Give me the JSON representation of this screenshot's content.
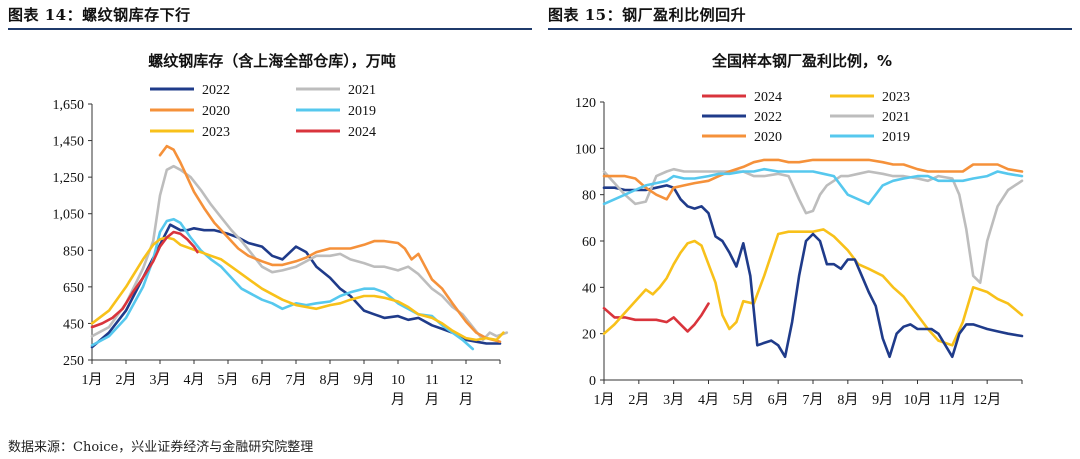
{
  "header": {
    "left_title": "图表 14：螺纹钢库存下行",
    "right_title": "图表 15：钢厂盈利比例回升"
  },
  "source": "数据来源：Choice，兴业证券经济与金融研究院整理",
  "colors": {
    "rule": "#1f3a6b",
    "navy": "#1f3b8a",
    "gray": "#bdbdbd",
    "orange": "#f5913a",
    "sky": "#56c8ee",
    "gold": "#f8c11a",
    "red": "#d9343c"
  },
  "chart_data": [
    {
      "type": "line",
      "title": "螺纹钢库存（含上海全部仓库），万吨",
      "x_range": [
        0,
        12
      ],
      "x_tick_labels": [
        "1月",
        "2月",
        "3月",
        "4月",
        "5月",
        "6月",
        "7月",
        "8月",
        "9月",
        "10\n月",
        "11\n月",
        "12\n月"
      ],
      "ylim": [
        250,
        1650
      ],
      "y_ticks": [
        250,
        450,
        650,
        850,
        1050,
        1250,
        1450,
        1650
      ],
      "y_tick_labels": [
        "250",
        "450",
        "650",
        "850",
        "1,050",
        "1,250",
        "1,450",
        "1,650"
      ],
      "legend": [
        "2022",
        "2021",
        "2020",
        "2019",
        "2023",
        "2024"
      ],
      "series": [
        {
          "name": "2022",
          "color": "#1f3b8a",
          "x": [
            0,
            0.5,
            1,
            1.5,
            2,
            2.3,
            2.6,
            2.8,
            3,
            3.3,
            3.6,
            4,
            4.3,
            4.6,
            5,
            5.3,
            5.6,
            6,
            6.3,
            6.6,
            7,
            7.3,
            7.6,
            8,
            8.3,
            8.6,
            9,
            9.3,
            9.6,
            10,
            10.3,
            10.6,
            11,
            11.3,
            11.6,
            12
          ],
          "y": [
            320,
            400,
            520,
            700,
            880,
            990,
            960,
            960,
            970,
            960,
            960,
            940,
            920,
            890,
            870,
            820,
            800,
            870,
            840,
            760,
            700,
            640,
            600,
            520,
            500,
            480,
            490,
            470,
            480,
            440,
            420,
            400,
            360,
            350,
            340,
            340
          ]
        },
        {
          "name": "2021",
          "color": "#bdbdbd",
          "x": [
            0,
            0.5,
            1,
            1.5,
            1.8,
            2,
            2.2,
            2.4,
            2.6,
            2.9,
            3.2,
            3.5,
            3.8,
            4.1,
            4.4,
            4.7,
            5,
            5.3,
            5.6,
            6,
            6.3,
            6.6,
            7,
            7.3,
            7.6,
            8,
            8.3,
            8.6,
            9,
            9.3,
            9.6,
            10,
            10.3,
            10.6,
            10.9,
            11.2,
            11.5,
            11.7,
            11.9,
            12.2
          ],
          "y": [
            380,
            430,
            560,
            750,
            900,
            1150,
            1290,
            1310,
            1290,
            1250,
            1180,
            1100,
            1030,
            960,
            900,
            830,
            760,
            730,
            740,
            760,
            790,
            820,
            820,
            830,
            800,
            780,
            760,
            760,
            740,
            760,
            720,
            640,
            600,
            540,
            500,
            430,
            360,
            400,
            380,
            400
          ]
        },
        {
          "name": "2020",
          "color": "#f5913a",
          "x": [
            2,
            2.2,
            2.4,
            2.6,
            2.8,
            3,
            3.3,
            3.6,
            4,
            4.3,
            4.6,
            5,
            5.3,
            5.6,
            6,
            6.3,
            6.6,
            7,
            7.3,
            7.6,
            8,
            8.3,
            8.6,
            9,
            9.2,
            9.4,
            9.6,
            9.8,
            10,
            10.3,
            10.6,
            11,
            11.3,
            11.6,
            12
          ],
          "y": [
            1370,
            1420,
            1400,
            1330,
            1250,
            1170,
            1080,
            1000,
            920,
            860,
            820,
            790,
            770,
            770,
            790,
            810,
            840,
            860,
            860,
            860,
            880,
            900,
            900,
            890,
            860,
            800,
            830,
            760,
            690,
            640,
            560,
            460,
            400,
            370,
            350
          ]
        },
        {
          "name": "2019",
          "color": "#56c8ee",
          "x": [
            0,
            0.5,
            1,
            1.5,
            1.8,
            2,
            2.2,
            2.4,
            2.6,
            2.9,
            3.2,
            3.5,
            3.8,
            4.1,
            4.4,
            4.7,
            5,
            5.3,
            5.6,
            6,
            6.3,
            6.6,
            7,
            7.3,
            7.6,
            8,
            8.3,
            8.6,
            9,
            9.3,
            9.6,
            10,
            10.3,
            10.6,
            10.9,
            11.2
          ],
          "y": [
            330,
            380,
            480,
            650,
            800,
            950,
            1010,
            1020,
            1000,
            920,
            850,
            800,
            760,
            700,
            640,
            610,
            580,
            560,
            530,
            560,
            550,
            560,
            570,
            600,
            620,
            640,
            640,
            620,
            560,
            530,
            500,
            490,
            440,
            400,
            360,
            310
          ]
        },
        {
          "name": "2023",
          "color": "#f8c11a",
          "x": [
            0,
            0.5,
            1,
            1.5,
            1.8,
            2,
            2.2,
            2.4,
            2.6,
            2.9,
            3.2,
            3.5,
            3.8,
            4.1,
            4.4,
            4.7,
            5,
            5.3,
            5.6,
            6,
            6.3,
            6.6,
            7,
            7.3,
            7.6,
            8,
            8.3,
            8.6,
            9,
            9.3,
            9.6,
            10,
            10.3,
            10.6,
            11,
            11.3,
            11.6,
            11.9,
            12.1
          ],
          "y": [
            450,
            520,
            650,
            800,
            880,
            910,
            920,
            910,
            880,
            860,
            840,
            820,
            800,
            760,
            720,
            680,
            640,
            610,
            580,
            550,
            540,
            530,
            550,
            560,
            580,
            600,
            600,
            590,
            570,
            540,
            500,
            480,
            450,
            410,
            370,
            360,
            370,
            360,
            400
          ]
        },
        {
          "name": "2024",
          "color": "#d9343c",
          "x": [
            0,
            0.3,
            0.6,
            0.9,
            1.2,
            1.5,
            1.8,
            2,
            2.2,
            2.4,
            2.6,
            2.8,
            3,
            3.1
          ],
          "y": [
            430,
            450,
            480,
            530,
            620,
            700,
            790,
            870,
            920,
            950,
            940,
            910,
            870,
            840
          ]
        }
      ]
    },
    {
      "type": "line",
      "title": "全国样本钢厂盈利比例，%",
      "x_range": [
        0,
        12
      ],
      "x_tick_labels": [
        "1月",
        "2月",
        "3月",
        "4月",
        "5月",
        "6月",
        "7月",
        "8月",
        "9月",
        "10月",
        "11月",
        "12月"
      ],
      "ylim": [
        0,
        120
      ],
      "y_ticks": [
        0,
        20,
        40,
        60,
        80,
        100,
        120
      ],
      "y_tick_labels": [
        "0",
        "20",
        "40",
        "60",
        "80",
        "100",
        "120"
      ],
      "legend": [
        "2024",
        "2023",
        "2022",
        "2021",
        "2020",
        "2019"
      ],
      "series": [
        {
          "name": "2024",
          "color": "#d9343c",
          "x": [
            0,
            0.3,
            0.6,
            0.9,
            1.2,
            1.5,
            1.8,
            2,
            2.2,
            2.4,
            2.6,
            2.8,
            3
          ],
          "y": [
            31,
            27,
            27,
            26,
            26,
            26,
            25,
            27,
            24,
            21,
            24,
            28,
            33
          ]
        },
        {
          "name": "2023",
          "color": "#f8c11a",
          "x": [
            0,
            0.3,
            0.6,
            0.9,
            1.2,
            1.4,
            1.6,
            1.8,
            2,
            2.2,
            2.4,
            2.6,
            2.8,
            3,
            3.2,
            3.4,
            3.6,
            3.8,
            4,
            4.3,
            4.6,
            5,
            5.3,
            5.6,
            6,
            6.3,
            6.6,
            7,
            7.3,
            7.6,
            8,
            8.3,
            8.6,
            9,
            9.3,
            9.6,
            10,
            10.3,
            10.6,
            11,
            11.3,
            11.6,
            12
          ],
          "y": [
            20,
            24,
            29,
            34,
            39,
            37,
            40,
            44,
            50,
            55,
            59,
            60,
            58,
            50,
            42,
            28,
            22,
            25,
            34,
            33,
            45,
            63,
            64,
            64,
            64,
            65,
            62,
            56,
            50,
            48,
            45,
            40,
            36,
            28,
            22,
            17,
            15,
            25,
            40,
            38,
            35,
            33,
            28
          ]
        },
        {
          "name": "2022",
          "color": "#1f3b8a",
          "x": [
            0,
            0.3,
            0.6,
            0.9,
            1.2,
            1.5,
            1.8,
            2,
            2.2,
            2.4,
            2.6,
            2.8,
            3,
            3.2,
            3.4,
            3.6,
            3.8,
            4,
            4.2,
            4.4,
            4.6,
            4.8,
            5,
            5.2,
            5.4,
            5.6,
            5.8,
            6,
            6.2,
            6.4,
            6.6,
            6.8,
            7,
            7.2,
            7.4,
            7.6,
            7.8,
            8,
            8.2,
            8.4,
            8.6,
            8.8,
            9,
            9.2,
            9.4,
            9.6,
            9.8,
            10,
            10.2,
            10.4,
            10.6,
            10.8,
            11,
            11.3,
            11.6,
            12
          ],
          "y": [
            83,
            83,
            82,
            82,
            82,
            83,
            84,
            83,
            78,
            75,
            74,
            75,
            72,
            62,
            60,
            55,
            49,
            59,
            45,
            15,
            16,
            17,
            15,
            10,
            25,
            45,
            60,
            63,
            60,
            50,
            50,
            48,
            52,
            52,
            45,
            38,
            32,
            18,
            10,
            20,
            23,
            24,
            22,
            22,
            22,
            20,
            15,
            10,
            20,
            24,
            24,
            23,
            22,
            21,
            20,
            19
          ]
        },
        {
          "name": "2021",
          "color": "#bdbdbd",
          "x": [
            0,
            0.3,
            0.6,
            0.9,
            1.2,
            1.5,
            1.8,
            2,
            2.3,
            2.6,
            3,
            3.3,
            3.6,
            4,
            4.3,
            4.6,
            5,
            5.3,
            5.6,
            5.8,
            6,
            6.2,
            6.4,
            6.6,
            6.8,
            7,
            7.3,
            7.6,
            8,
            8.3,
            8.6,
            9,
            9.3,
            9.6,
            10,
            10.2,
            10.4,
            10.6,
            10.8,
            11,
            11.3,
            11.6,
            12
          ],
          "y": [
            90,
            85,
            80,
            76,
            77,
            88,
            90,
            91,
            90,
            90,
            90,
            90,
            90,
            90,
            88,
            88,
            89,
            88,
            78,
            72,
            73,
            80,
            84,
            86,
            88,
            88,
            89,
            90,
            89,
            88,
            88,
            87,
            86,
            88,
            87,
            80,
            65,
            45,
            42,
            60,
            75,
            82,
            86
          ]
        },
        {
          "name": "2020",
          "color": "#f5913a",
          "x": [
            0,
            0.3,
            0.6,
            0.9,
            1.2,
            1.5,
            1.8,
            2,
            2.3,
            2.6,
            3,
            3.3,
            3.6,
            4,
            4.3,
            4.6,
            5,
            5.3,
            5.6,
            6,
            6.3,
            6.6,
            7,
            7.3,
            7.6,
            8,
            8.3,
            8.6,
            9,
            9.3,
            9.6,
            10,
            10.3,
            10.6,
            11,
            11.3,
            11.6,
            12
          ],
          "y": [
            88,
            88,
            88,
            87,
            83,
            80,
            78,
            83,
            84,
            85,
            86,
            88,
            90,
            92,
            94,
            95,
            95,
            94,
            94,
            95,
            95,
            95,
            95,
            95,
            95,
            94,
            93,
            93,
            91,
            90,
            90,
            90,
            90,
            93,
            93,
            93,
            91,
            90
          ]
        },
        {
          "name": "2019",
          "color": "#56c8ee",
          "x": [
            0,
            0.3,
            0.6,
            0.9,
            1.2,
            1.5,
            1.8,
            2,
            2.3,
            2.6,
            3,
            3.3,
            3.6,
            4,
            4.3,
            4.6,
            5,
            5.3,
            5.6,
            6,
            6.3,
            6.6,
            7,
            7.3,
            7.6,
            8,
            8.3,
            8.6,
            9,
            9.3,
            9.6,
            10,
            10.3,
            10.6,
            11,
            11.3,
            11.6,
            12
          ],
          "y": [
            76,
            78,
            80,
            82,
            84,
            85,
            86,
            88,
            87,
            87,
            88,
            89,
            89,
            90,
            90,
            91,
            90,
            90,
            90,
            90,
            89,
            88,
            80,
            78,
            76,
            84,
            86,
            87,
            88,
            88,
            86,
            86,
            86,
            87,
            88,
            90,
            89,
            88
          ]
        }
      ]
    }
  ]
}
